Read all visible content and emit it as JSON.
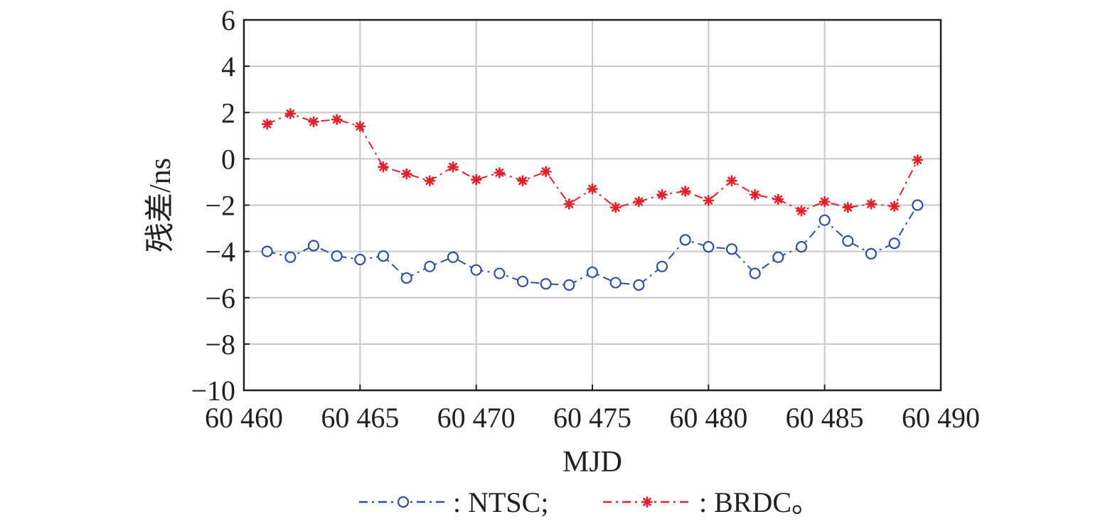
{
  "chart_data": {
    "type": "line",
    "xlabel": "MJD",
    "ylabel": "残差/ns",
    "xlim": [
      60460,
      60490
    ],
    "ylim": [
      -10,
      6
    ],
    "x_ticks": [
      60460,
      60465,
      60470,
      60475,
      60480,
      60485,
      60490
    ],
    "x_tick_labels": [
      "60 460",
      "60 465",
      "60 470",
      "60 475",
      "60 480",
      "60 485",
      "60 490"
    ],
    "y_ticks": [
      6,
      4,
      2,
      0,
      -2,
      -4,
      -6,
      -8,
      -10
    ],
    "y_tick_labels": [
      "6",
      "4",
      "2",
      "0",
      "−2",
      "−4",
      "−6",
      "−8",
      "−10"
    ],
    "grid": true,
    "legend_position": "bottom",
    "x": [
      60461,
      60462,
      60463,
      60464,
      60465,
      60466,
      60467,
      60468,
      60469,
      60470,
      60471,
      60472,
      60473,
      60474,
      60475,
      60476,
      60477,
      60478,
      60479,
      60480,
      60481,
      60482,
      60483,
      60484,
      60485,
      60486,
      60487,
      60488,
      60489
    ],
    "series": [
      {
        "name": "NTSC",
        "legend_label": ": NTSC;",
        "color": "#2e4fa3",
        "marker": "circle",
        "line_style": "dash-dot",
        "values": [
          -4.0,
          -4.25,
          -3.75,
          -4.2,
          -4.35,
          -4.2,
          -5.15,
          -4.65,
          -4.25,
          -4.8,
          -4.95,
          -5.3,
          -5.4,
          -5.45,
          -4.9,
          -5.35,
          -5.45,
          -4.65,
          -3.5,
          -3.8,
          -3.9,
          -4.95,
          -4.25,
          -3.8,
          -2.65,
          -3.55,
          -4.1,
          -3.65,
          -2.0
        ]
      },
      {
        "name": "BRDC",
        "legend_label": ": BRDC。",
        "color": "#e5202a",
        "marker": "asterisk",
        "line_style": "dash-dot",
        "values": [
          1.5,
          1.95,
          1.6,
          1.7,
          1.4,
          -0.35,
          -0.65,
          -0.95,
          -0.35,
          -0.9,
          -0.6,
          -0.95,
          -0.55,
          -1.95,
          -1.3,
          -2.1,
          -1.85,
          -1.55,
          -1.4,
          -1.8,
          -0.95,
          -1.55,
          -1.75,
          -2.25,
          -1.85,
          -2.1,
          -1.95,
          -2.05,
          -0.05
        ]
      }
    ]
  }
}
